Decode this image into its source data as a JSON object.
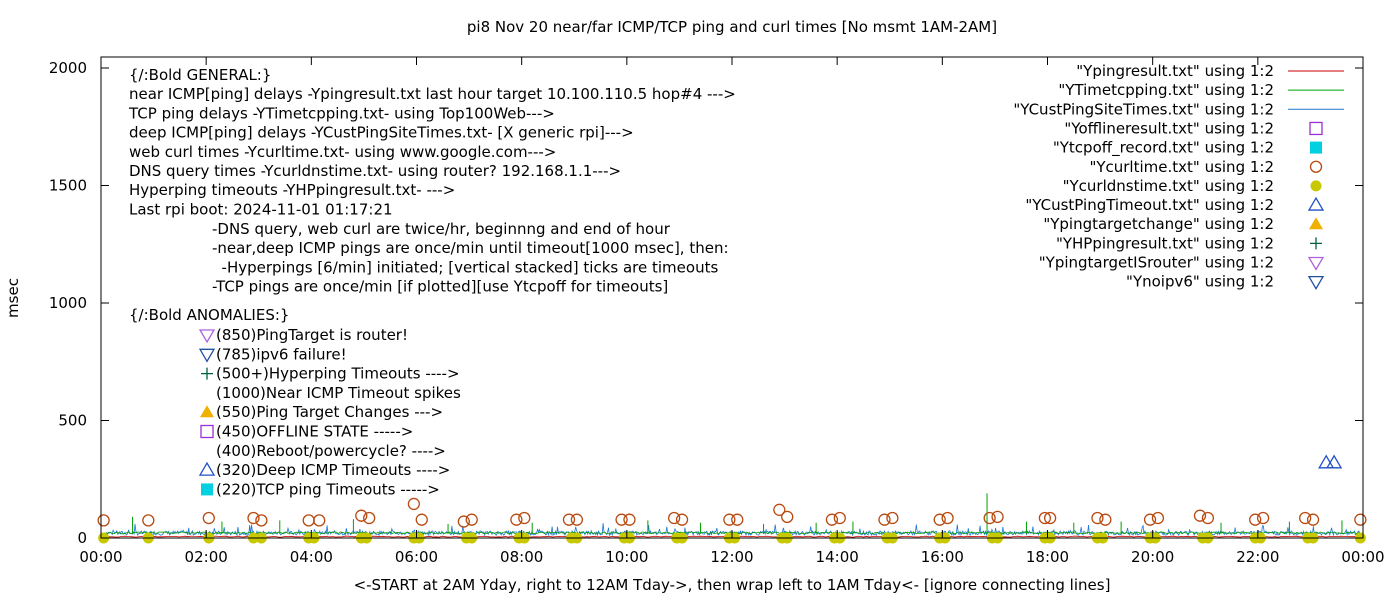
{
  "chart_data": {
    "type": "line",
    "title": "pi8 Nov 20  near/far ICMP/TCP ping and curl times [No msmt 1AM-2AM]",
    "xlabel": "<-START at 2AM Yday, right to 12AM Tday->, then wrap left to 1AM Tday<- [ignore connecting lines]",
    "ylabel": "msec",
    "xlim": [
      0,
      24
    ],
    "ylim": [
      0,
      2050
    ],
    "x_ticks": [
      "00:00",
      "02:00",
      "04:00",
      "06:00",
      "08:00",
      "10:00",
      "12:00",
      "14:00",
      "16:00",
      "18:00",
      "20:00",
      "22:00",
      "00:00"
    ],
    "y_ticks": [
      0,
      500,
      1000,
      1500,
      2000
    ],
    "grid": false,
    "legend_position": "top-right",
    "legend": [
      {
        "label": "\"Ypingresult.txt\" using 1:2",
        "style": "line",
        "color": "#cc0000"
      },
      {
        "label": "\"YTimetcpping.txt\" using 1:2",
        "style": "line",
        "color": "#00a000"
      },
      {
        "label": "\"YCustPingSiteTimes.txt\" using 1:2",
        "style": "line",
        "color": "#1f78d1"
      },
      {
        "label": "\"Yofflineresult.txt\" using 1:2",
        "style": "square-open",
        "color": "#9b30d9"
      },
      {
        "label": "\"Ytcpoff_record.txt\" using 1:2",
        "style": "square-filled",
        "color": "#00d0e0"
      },
      {
        "label": "\"Ycurltime.txt\" using 1:2",
        "style": "circle-open",
        "color": "#b84a10"
      },
      {
        "label": "\"Ycurldnstime.txt\" using 1:2",
        "style": "circle-filled",
        "color": "#c8c800"
      },
      {
        "label": "\"YCustPingTimeout.txt\" using 1:2",
        "style": "triangle-up-open",
        "color": "#1f50c8"
      },
      {
        "label": "\"Ypingtargetchange\" using 1:2",
        "style": "triangle-up-filled",
        "color": "#f0b000"
      },
      {
        "label": "\"YHPpingresult.txt\" using 1:2",
        "style": "plus",
        "color": "#006040"
      },
      {
        "label": "\"YpingtargetISrouter\" using 1:2",
        "style": "triangle-down-open",
        "color": "#b060e0"
      },
      {
        "label": "\"Ynoipv6\" using 1:2",
        "style": "triangle-down-open",
        "color": "#1f50a0"
      }
    ],
    "general_notes": [
      "{/:Bold GENERAL:}",
      "near ICMP[ping] delays -Ypingresult.txt last hour target 10.100.110.5 hop#4 --->",
      "TCP ping delays -YTimetcpping.txt- using Top100Web--->",
      "deep ICMP[ping] delays -YCustPingSiteTimes.txt- [X generic rpi]--->",
      "web curl times -Ycurltime.txt- using www.google.com--->",
      "DNS query times -Ycurldnstime.txt- using router? 192.168.1.1--->",
      "Hyperping timeouts -YHPpingresult.txt- --->",
      "Last rpi boot: 2024-11-01 01:17:21"
    ],
    "detail_notes": [
      "-DNS query, web curl are twice/hr, beginnng and end of hour",
      "-near,deep ICMP pings are once/min until timeout[1000 msec], then:",
      "  -Hyperpings [6/min] initiated; [vertical stacked] ticks are timeouts",
      "-TCP pings are once/min [if plotted][use Ytcpoff for timeouts]"
    ],
    "anomalies_title": "{/:Bold ANOMALIES:}",
    "anomalies": [
      {
        "text": "(850)PingTarget is router!",
        "marker": "triangle-down-open",
        "color": "#b060e0"
      },
      {
        "text": "(785)ipv6 failure!",
        "marker": "triangle-down-open",
        "color": "#1f50a0"
      },
      {
        "text": "(500+)Hyperping Timeouts ---->",
        "marker": "plus",
        "color": "#006040"
      },
      {
        "text": "(1000)Near ICMP Timeout spikes",
        "marker": "none",
        "color": ""
      },
      {
        "text": "(550)Ping Target Changes --->",
        "marker": "triangle-up-filled",
        "color": "#f0b000"
      },
      {
        "text": "(450)OFFLINE STATE ----->",
        "marker": "square-open",
        "color": "#9b30d9"
      },
      {
        "text": "(400)Reboot/powercycle? ---->",
        "marker": "none",
        "color": ""
      },
      {
        "text": "(320)Deep ICMP Timeouts ---->",
        "marker": "triangle-up-open",
        "color": "#1f50c8"
      },
      {
        "text": "(220)TCP ping Timeouts ----->",
        "marker": "square-filled",
        "color": "#00d0e0"
      }
    ],
    "curl_times": [
      {
        "x": 0.05,
        "y": 75
      },
      {
        "x": 0.9,
        "y": 75
      },
      {
        "x": 2.05,
        "y": 85
      },
      {
        "x": 2.9,
        "y": 85
      },
      {
        "x": 3.05,
        "y": 75
      },
      {
        "x": 3.95,
        "y": 75
      },
      {
        "x": 4.15,
        "y": 75
      },
      {
        "x": 4.95,
        "y": 95
      },
      {
        "x": 5.1,
        "y": 85
      },
      {
        "x": 5.95,
        "y": 145
      },
      {
        "x": 6.1,
        "y": 78
      },
      {
        "x": 6.9,
        "y": 70
      },
      {
        "x": 7.05,
        "y": 78
      },
      {
        "x": 7.9,
        "y": 78
      },
      {
        "x": 8.05,
        "y": 85
      },
      {
        "x": 8.9,
        "y": 78
      },
      {
        "x": 9.05,
        "y": 78
      },
      {
        "x": 9.9,
        "y": 78
      },
      {
        "x": 10.05,
        "y": 78
      },
      {
        "x": 10.9,
        "y": 85
      },
      {
        "x": 11.05,
        "y": 78
      },
      {
        "x": 11.95,
        "y": 78
      },
      {
        "x": 12.1,
        "y": 78
      },
      {
        "x": 12.9,
        "y": 120
      },
      {
        "x": 13.05,
        "y": 90
      },
      {
        "x": 13.9,
        "y": 78
      },
      {
        "x": 14.05,
        "y": 85
      },
      {
        "x": 14.9,
        "y": 78
      },
      {
        "x": 15.05,
        "y": 85
      },
      {
        "x": 15.95,
        "y": 78
      },
      {
        "x": 16.1,
        "y": 85
      },
      {
        "x": 16.9,
        "y": 85
      },
      {
        "x": 17.05,
        "y": 90
      },
      {
        "x": 17.95,
        "y": 85
      },
      {
        "x": 18.05,
        "y": 85
      },
      {
        "x": 18.95,
        "y": 85
      },
      {
        "x": 19.1,
        "y": 78
      },
      {
        "x": 19.95,
        "y": 78
      },
      {
        "x": 20.1,
        "y": 85
      },
      {
        "x": 20.9,
        "y": 95
      },
      {
        "x": 21.05,
        "y": 85
      },
      {
        "x": 21.95,
        "y": 78
      },
      {
        "x": 22.1,
        "y": 85
      },
      {
        "x": 22.9,
        "y": 85
      },
      {
        "x": 23.05,
        "y": 78
      },
      {
        "x": 23.95,
        "y": 78
      }
    ],
    "dns_times": [
      {
        "x": 0.05,
        "y": 0
      },
      {
        "x": 0.9,
        "y": 0
      },
      {
        "x": 2.05,
        "y": 0
      },
      {
        "x": 2.9,
        "y": 0
      },
      {
        "x": 3.05,
        "y": 0
      },
      {
        "x": 3.95,
        "y": 0
      },
      {
        "x": 4.05,
        "y": 0
      },
      {
        "x": 4.95,
        "y": 0
      },
      {
        "x": 5.05,
        "y": 0
      },
      {
        "x": 5.95,
        "y": 0
      },
      {
        "x": 6.05,
        "y": 0
      },
      {
        "x": 6.95,
        "y": 0
      },
      {
        "x": 7.05,
        "y": 0
      },
      {
        "x": 7.95,
        "y": 0
      },
      {
        "x": 8.05,
        "y": 0
      },
      {
        "x": 8.95,
        "y": 0
      },
      {
        "x": 9.05,
        "y": 0
      },
      {
        "x": 9.95,
        "y": 0
      },
      {
        "x": 10.05,
        "y": 0
      },
      {
        "x": 10.95,
        "y": 0
      },
      {
        "x": 11.05,
        "y": 0
      },
      {
        "x": 11.95,
        "y": 0
      },
      {
        "x": 12.05,
        "y": 0
      },
      {
        "x": 12.95,
        "y": 0
      },
      {
        "x": 13.05,
        "y": 0
      },
      {
        "x": 13.95,
        "y": 0
      },
      {
        "x": 14.05,
        "y": 0
      },
      {
        "x": 14.95,
        "y": 0
      },
      {
        "x": 15.05,
        "y": 0
      },
      {
        "x": 15.95,
        "y": 0
      },
      {
        "x": 16.05,
        "y": 0
      },
      {
        "x": 16.95,
        "y": 0
      },
      {
        "x": 17.05,
        "y": 0
      },
      {
        "x": 17.95,
        "y": 0
      },
      {
        "x": 18.05,
        "y": 0
      },
      {
        "x": 18.95,
        "y": 0
      },
      {
        "x": 19.05,
        "y": 0
      },
      {
        "x": 19.95,
        "y": 0
      },
      {
        "x": 20.05,
        "y": 0
      },
      {
        "x": 20.95,
        "y": 0
      },
      {
        "x": 21.05,
        "y": 0
      },
      {
        "x": 21.95,
        "y": 0
      },
      {
        "x": 22.05,
        "y": 0
      },
      {
        "x": 22.95,
        "y": 0
      },
      {
        "x": 23.05,
        "y": 0
      },
      {
        "x": 23.95,
        "y": 0
      }
    ],
    "deep_icmp_timeouts": [
      {
        "x": 23.3,
        "y": 320
      },
      {
        "x": 23.45,
        "y": 320
      }
    ],
    "tcp_ping_spikes": [
      {
        "x": 0.6,
        "y": 90
      },
      {
        "x": 2.3,
        "y": 70
      },
      {
        "x": 3.4,
        "y": 75
      },
      {
        "x": 4.8,
        "y": 80
      },
      {
        "x": 6.6,
        "y": 60
      },
      {
        "x": 8.2,
        "y": 65
      },
      {
        "x": 10.4,
        "y": 75
      },
      {
        "x": 11.4,
        "y": 65
      },
      {
        "x": 12.6,
        "y": 60
      },
      {
        "x": 13.6,
        "y": 65
      },
      {
        "x": 14.3,
        "y": 70
      },
      {
        "x": 16.85,
        "y": 190
      },
      {
        "x": 17.6,
        "y": 70
      },
      {
        "x": 18.5,
        "y": 65
      },
      {
        "x": 19.4,
        "y": 70
      },
      {
        "x": 21.3,
        "y": 65
      },
      {
        "x": 22.6,
        "y": 70
      },
      {
        "x": 23.6,
        "y": 75
      }
    ]
  }
}
